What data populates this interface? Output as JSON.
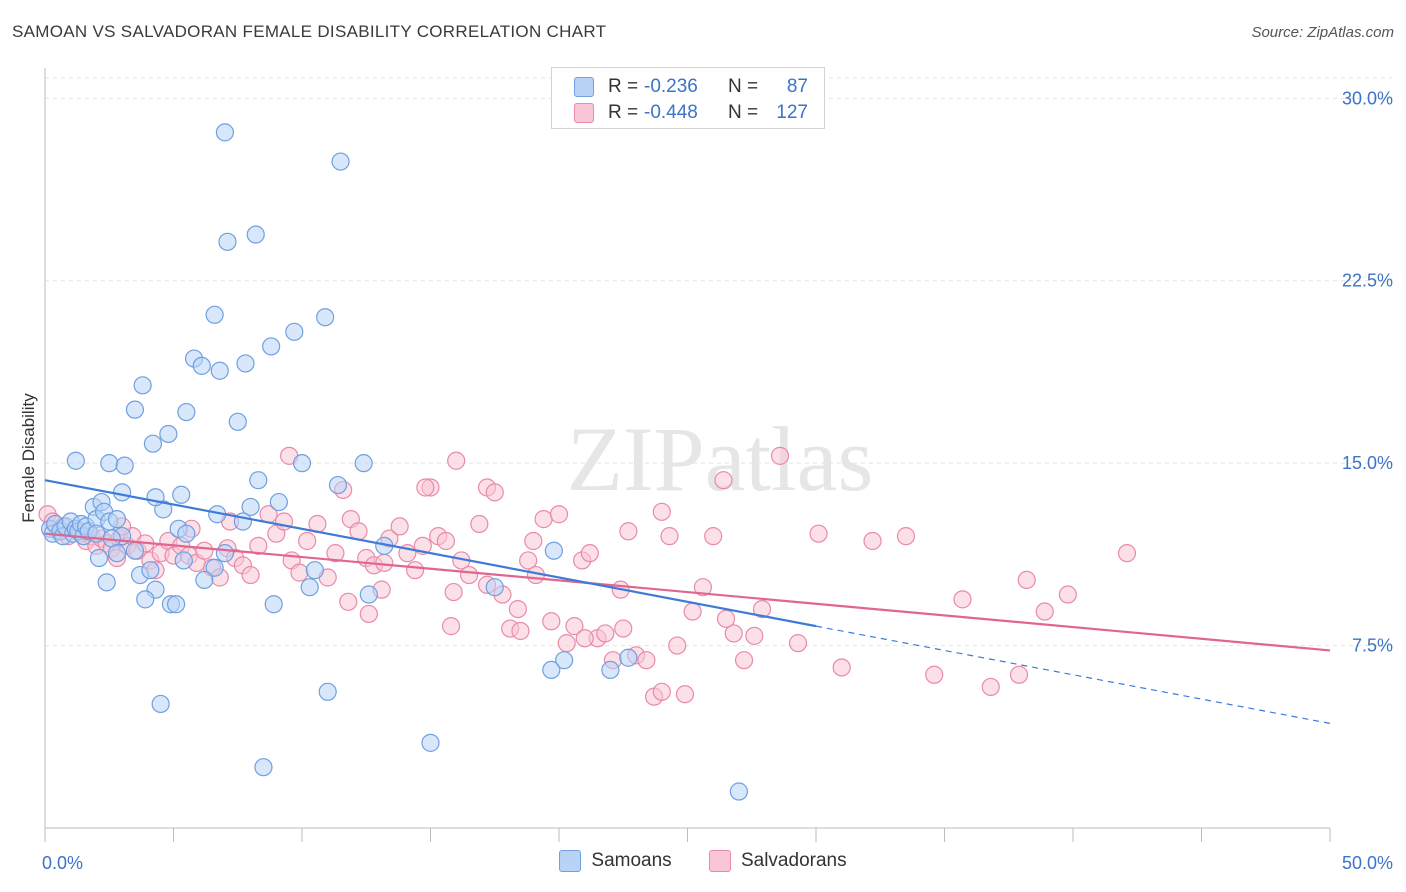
{
  "title": "SAMOAN VS SALVADORAN FEMALE DISABILITY CORRELATION CHART",
  "source": "Source: ZipAtlas.com",
  "watermark": "ZIPatlas",
  "colors": {
    "samoans_fill": "#b8d3f5",
    "samoans_stroke": "#6fa0e0",
    "samoans_line": "#3f7ad6",
    "salvadorans_fill": "#f8c6d6",
    "salvadorans_stroke": "#e98aa9",
    "salvadorans_line": "#e0658f",
    "axis_label": "#3b73c6",
    "grid": "#e3e3e3"
  },
  "stats": {
    "samoans": {
      "r_label": "R =",
      "r": "-0.236",
      "n_label": "N =",
      "n": "87"
    },
    "salvadorans": {
      "r_label": "R =",
      "r": "-0.448",
      "n_label": "N =",
      "n": "127"
    }
  },
  "chart_data": {
    "type": "scatter",
    "title": "SAMOAN VS SALVADORAN FEMALE DISABILITY CORRELATION CHART",
    "xlabel": "",
    "ylabel": "Female Disability",
    "xlim": [
      0,
      50
    ],
    "ylim": [
      0,
      31
    ],
    "x_tick_labels": [
      "0.0%",
      "50.0%"
    ],
    "y_ticks": [
      7.5,
      15.0,
      22.5,
      30.0
    ],
    "y_tick_labels": [
      "7.5%",
      "15.0%",
      "22.5%",
      "30.0%"
    ],
    "grid": true,
    "legend_position": "bottom",
    "series": [
      {
        "name": "Samoans",
        "trend": {
          "x_start": 0,
          "y_start": 14.3,
          "x_end": 30,
          "y_end": 8.3,
          "dashed_to_x": 50,
          "dashed_to_y": 4.3
        },
        "points": [
          [
            0.2,
            12.3
          ],
          [
            0.3,
            12.1
          ],
          [
            0.4,
            12.5
          ],
          [
            0.6,
            12.2
          ],
          [
            0.7,
            12.0
          ],
          [
            0.8,
            12.4
          ],
          [
            1.0,
            12.6
          ],
          [
            1.1,
            12.1
          ],
          [
            1.2,
            12.3
          ],
          [
            1.3,
            12.2
          ],
          [
            1.4,
            12.5
          ],
          [
            1.5,
            12.0
          ],
          [
            1.6,
            12.4
          ],
          [
            1.7,
            12.2
          ],
          [
            1.9,
            13.2
          ],
          [
            2.0,
            12.7
          ],
          [
            2.2,
            13.4
          ],
          [
            2.3,
            13.0
          ],
          [
            2.5,
            12.6
          ],
          [
            2.0,
            12.1
          ],
          [
            1.2,
            15.1
          ],
          [
            2.5,
            15.0
          ],
          [
            3.1,
            14.9
          ],
          [
            3.0,
            13.8
          ],
          [
            2.8,
            12.7
          ],
          [
            3.0,
            12.0
          ],
          [
            3.5,
            11.4
          ],
          [
            2.6,
            11.9
          ],
          [
            2.8,
            11.3
          ],
          [
            2.1,
            11.1
          ],
          [
            2.4,
            10.1
          ],
          [
            3.7,
            10.4
          ],
          [
            4.1,
            10.6
          ],
          [
            4.3,
            9.8
          ],
          [
            3.9,
            9.4
          ],
          [
            4.9,
            9.2
          ],
          [
            5.1,
            9.2
          ],
          [
            4.6,
            13.1
          ],
          [
            4.3,
            13.6
          ],
          [
            5.2,
            12.3
          ],
          [
            5.3,
            13.7
          ],
          [
            5.5,
            12.1
          ],
          [
            4.2,
            15.8
          ],
          [
            4.8,
            16.2
          ],
          [
            5.5,
            17.1
          ],
          [
            3.5,
            17.2
          ],
          [
            3.8,
            18.2
          ],
          [
            5.8,
            19.3
          ],
          [
            6.1,
            19.0
          ],
          [
            6.8,
            18.8
          ],
          [
            7.5,
            16.7
          ],
          [
            6.6,
            21.1
          ],
          [
            7.8,
            19.1
          ],
          [
            8.8,
            19.8
          ],
          [
            9.7,
            20.4
          ],
          [
            10.9,
            21.0
          ],
          [
            7.0,
            28.6
          ],
          [
            11.5,
            27.4
          ],
          [
            7.1,
            24.1
          ],
          [
            8.2,
            24.4
          ],
          [
            8.3,
            14.3
          ],
          [
            8.0,
            13.2
          ],
          [
            9.1,
            13.4
          ],
          [
            7.7,
            12.6
          ],
          [
            6.7,
            12.9
          ],
          [
            7.0,
            11.3
          ],
          [
            6.6,
            10.7
          ],
          [
            5.4,
            11.0
          ],
          [
            6.2,
            10.2
          ],
          [
            8.9,
            9.2
          ],
          [
            10.3,
            9.9
          ],
          [
            10.5,
            10.6
          ],
          [
            10.0,
            15.0
          ],
          [
            11.4,
            14.1
          ],
          [
            12.4,
            15.0
          ],
          [
            12.6,
            9.6
          ],
          [
            13.2,
            11.6
          ],
          [
            11.0,
            5.6
          ],
          [
            4.5,
            5.1
          ],
          [
            8.5,
            2.5
          ],
          [
            15.0,
            3.5
          ],
          [
            17.5,
            9.9
          ],
          [
            19.8,
            11.4
          ],
          [
            20.2,
            6.9
          ],
          [
            19.7,
            6.5
          ],
          [
            22.0,
            6.5
          ],
          [
            22.7,
            7.0
          ],
          [
            27.0,
            1.5
          ]
        ]
      },
      {
        "name": "Salvadorans",
        "trend": {
          "x_start": 0,
          "y_start": 12.1,
          "x_end": 50,
          "y_end": 7.3
        },
        "points": [
          [
            0.1,
            12.9
          ],
          [
            0.3,
            12.6
          ],
          [
            0.5,
            12.2
          ],
          [
            0.7,
            12.4
          ],
          [
            0.9,
            12.0
          ],
          [
            1.2,
            12.3
          ],
          [
            1.4,
            12.1
          ],
          [
            1.6,
            11.8
          ],
          [
            1.8,
            12.0
          ],
          [
            2.0,
            11.6
          ],
          [
            2.2,
            11.9
          ],
          [
            2.4,
            11.7
          ],
          [
            2.6,
            11.5
          ],
          [
            2.9,
            11.9
          ],
          [
            3.2,
            11.6
          ],
          [
            3.4,
            12.0
          ],
          [
            3.6,
            11.4
          ],
          [
            3.9,
            11.7
          ],
          [
            4.1,
            11.0
          ],
          [
            4.3,
            10.6
          ],
          [
            4.5,
            11.3
          ],
          [
            4.8,
            11.8
          ],
          [
            5.0,
            11.2
          ],
          [
            5.3,
            11.6
          ],
          [
            5.6,
            11.2
          ],
          [
            5.9,
            10.9
          ],
          [
            6.2,
            11.4
          ],
          [
            6.5,
            10.7
          ],
          [
            6.8,
            10.3
          ],
          [
            7.1,
            11.5
          ],
          [
            7.4,
            11.1
          ],
          [
            7.7,
            10.8
          ],
          [
            8.0,
            10.4
          ],
          [
            8.3,
            11.6
          ],
          [
            8.7,
            12.9
          ],
          [
            9.0,
            12.1
          ],
          [
            9.3,
            12.6
          ],
          [
            9.6,
            11.0
          ],
          [
            9.9,
            10.5
          ],
          [
            10.2,
            11.8
          ],
          [
            10.6,
            12.5
          ],
          [
            11.0,
            10.3
          ],
          [
            11.3,
            11.3
          ],
          [
            11.6,
            13.9
          ],
          [
            11.9,
            12.7
          ],
          [
            12.2,
            12.2
          ],
          [
            12.5,
            11.1
          ],
          [
            12.8,
            10.8
          ],
          [
            13.1,
            9.8
          ],
          [
            13.4,
            11.9
          ],
          [
            13.8,
            12.4
          ],
          [
            14.1,
            11.3
          ],
          [
            14.4,
            10.6
          ],
          [
            14.7,
            11.6
          ],
          [
            15.0,
            14.0
          ],
          [
            15.3,
            12.0
          ],
          [
            15.6,
            11.8
          ],
          [
            15.9,
            9.7
          ],
          [
            16.2,
            11.0
          ],
          [
            16.5,
            10.4
          ],
          [
            16.9,
            12.5
          ],
          [
            17.2,
            14.0
          ],
          [
            17.5,
            13.8
          ],
          [
            17.8,
            9.6
          ],
          [
            18.1,
            8.2
          ],
          [
            18.4,
            9.0
          ],
          [
            18.8,
            11.0
          ],
          [
            19.1,
            10.4
          ],
          [
            19.4,
            12.7
          ],
          [
            19.7,
            8.5
          ],
          [
            20.0,
            12.9
          ],
          [
            20.3,
            7.6
          ],
          [
            20.6,
            8.3
          ],
          [
            20.9,
            11.0
          ],
          [
            21.2,
            11.3
          ],
          [
            21.5,
            7.8
          ],
          [
            21.8,
            8.0
          ],
          [
            22.1,
            6.9
          ],
          [
            22.4,
            9.8
          ],
          [
            22.7,
            12.2
          ],
          [
            23.0,
            7.1
          ],
          [
            23.4,
            6.9
          ],
          [
            23.7,
            5.4
          ],
          [
            24.0,
            5.6
          ],
          [
            24.3,
            12.0
          ],
          [
            24.6,
            7.5
          ],
          [
            24.9,
            5.5
          ],
          [
            25.2,
            8.9
          ],
          [
            25.6,
            9.9
          ],
          [
            26.0,
            12.0
          ],
          [
            26.4,
            14.3
          ],
          [
            26.8,
            8.0
          ],
          [
            27.2,
            6.9
          ],
          [
            27.6,
            7.9
          ],
          [
            27.9,
            9.0
          ],
          [
            28.6,
            15.3
          ],
          [
            29.3,
            7.6
          ],
          [
            30.1,
            12.1
          ],
          [
            31.0,
            6.6
          ],
          [
            32.2,
            11.8
          ],
          [
            33.5,
            12.0
          ],
          [
            34.6,
            6.3
          ],
          [
            35.7,
            9.4
          ],
          [
            36.8,
            5.8
          ],
          [
            37.9,
            6.3
          ],
          [
            38.2,
            10.2
          ],
          [
            38.9,
            8.9
          ],
          [
            39.8,
            9.6
          ],
          [
            42.1,
            11.3
          ],
          [
            14.8,
            14.0
          ],
          [
            19.0,
            11.8
          ],
          [
            16.0,
            15.1
          ],
          [
            9.5,
            15.3
          ],
          [
            7.2,
            12.6
          ],
          [
            3.0,
            12.4
          ],
          [
            5.7,
            12.3
          ],
          [
            2.8,
            11.1
          ],
          [
            13.2,
            10.9
          ],
          [
            24.0,
            13.0
          ],
          [
            17.2,
            10.0
          ],
          [
            26.5,
            8.6
          ],
          [
            18.5,
            8.1
          ],
          [
            21.0,
            7.8
          ],
          [
            22.5,
            8.2
          ],
          [
            15.8,
            8.3
          ],
          [
            12.6,
            8.8
          ],
          [
            11.8,
            9.3
          ]
        ]
      }
    ]
  },
  "legend": {
    "samoans_label": "Samoans",
    "salvadorans_label": "Salvadorans"
  }
}
